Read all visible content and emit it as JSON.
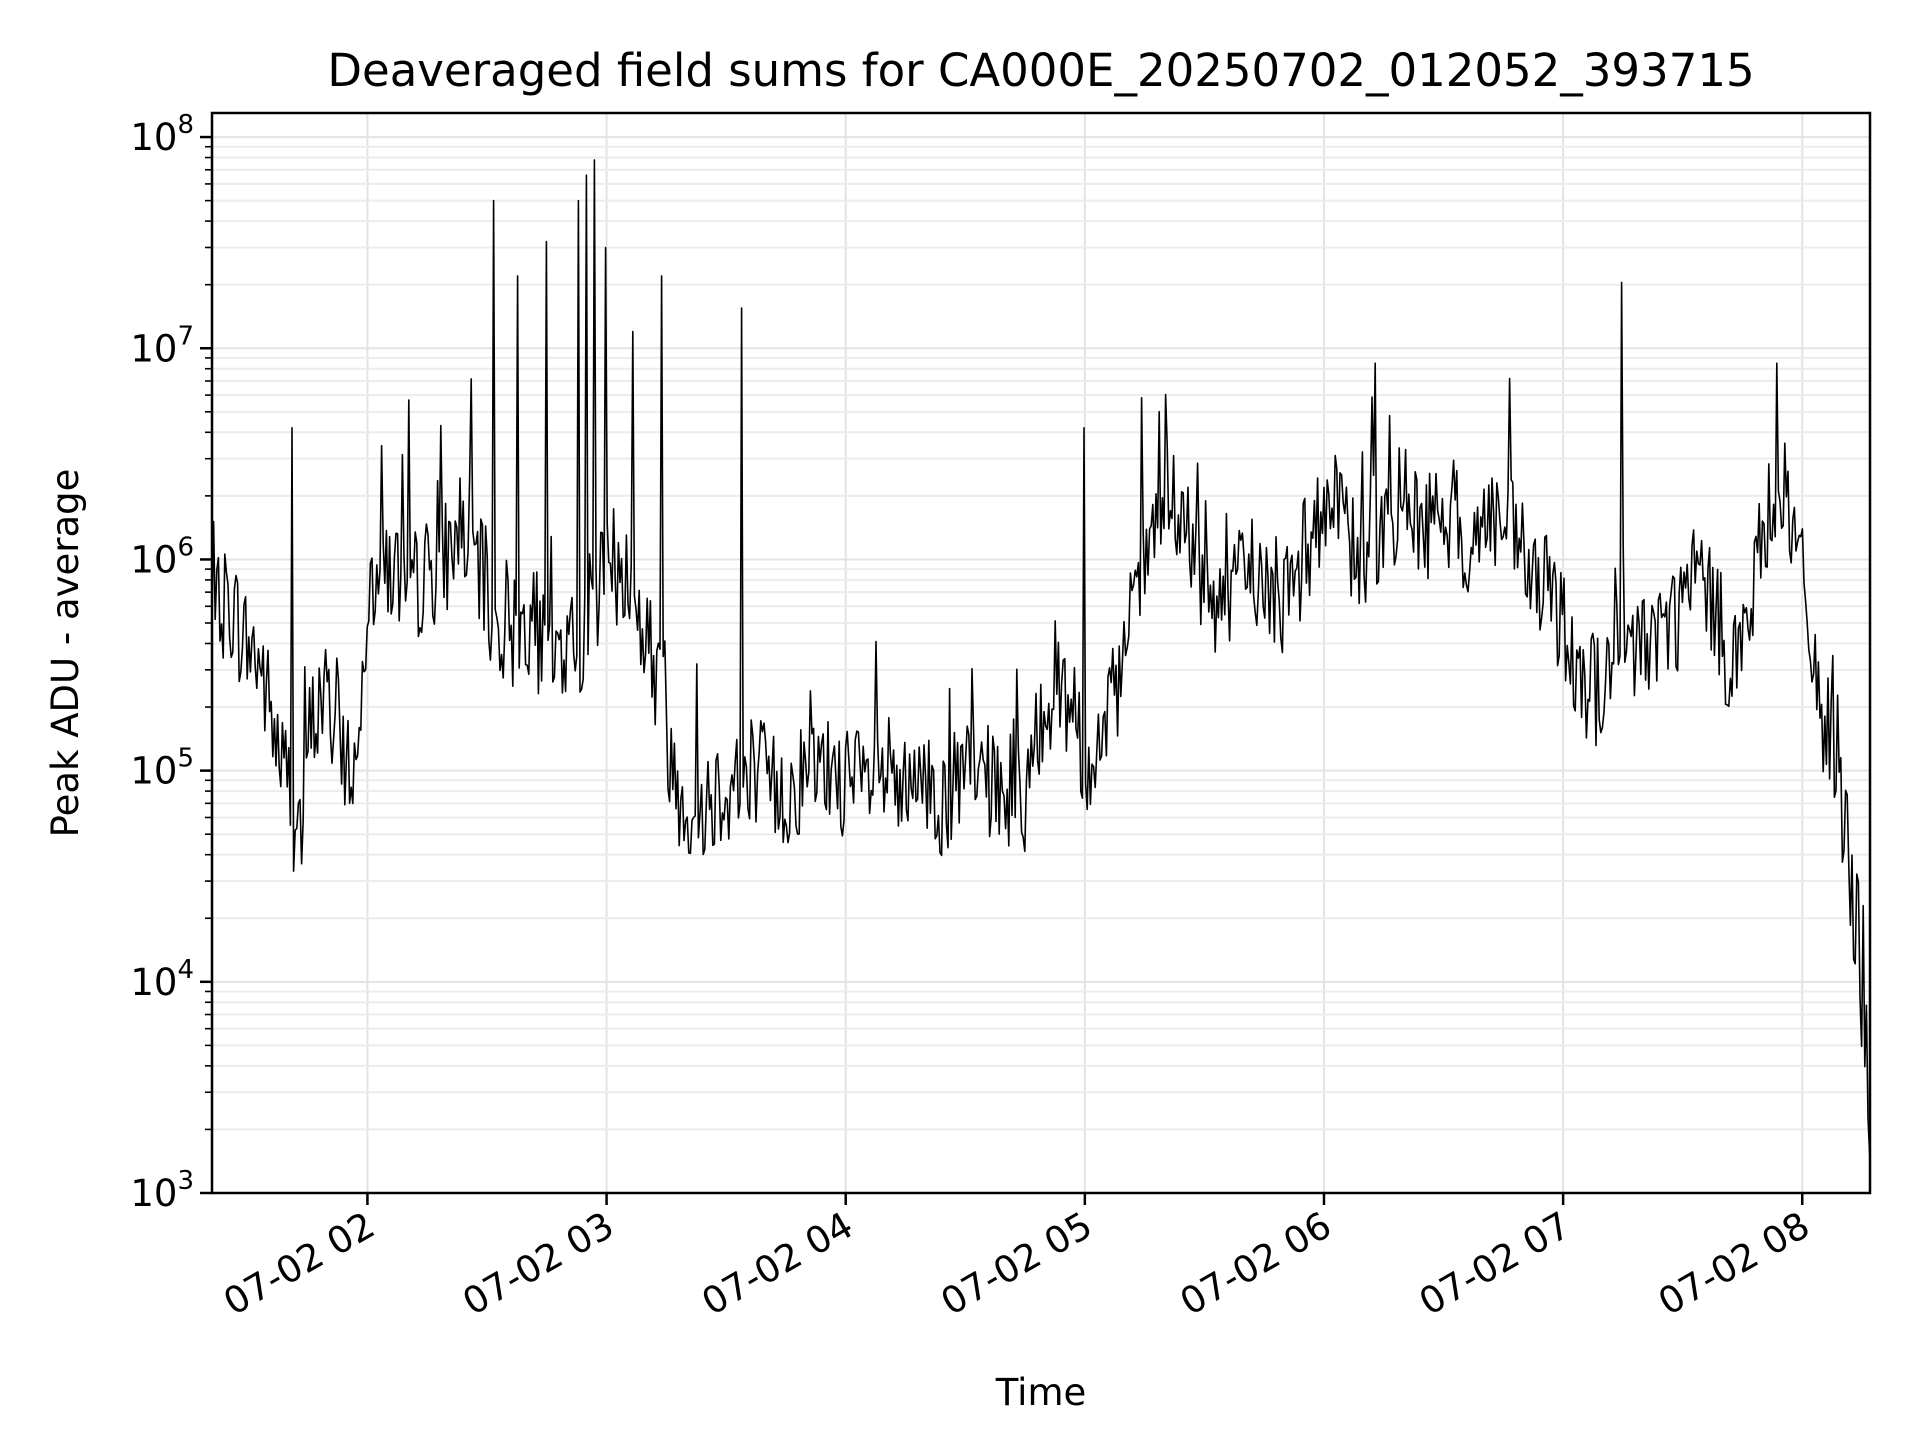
{
  "chart_data": {
    "type": "line",
    "title": "Deaveraged field sums for CA000E_20250702_012052_393715",
    "xlabel": "Time",
    "ylabel": "Peak ADU - average",
    "yscale": "log",
    "ylim": [
      1000,
      130000000
    ],
    "xlim": [
      "2025-07-02 01:21",
      "2025-07-02 08:17"
    ],
    "grid": true,
    "grid_minor_y": true,
    "line_color": "#000000",
    "x_ticks": [
      {
        "value": "2025-07-02 02:00",
        "label": "07-02 02"
      },
      {
        "value": "2025-07-02 03:00",
        "label": "07-02 03"
      },
      {
        "value": "2025-07-02 04:00",
        "label": "07-02 04"
      },
      {
        "value": "2025-07-02 05:00",
        "label": "07-02 05"
      },
      {
        "value": "2025-07-02 06:00",
        "label": "07-02 06"
      },
      {
        "value": "2025-07-02 07:00",
        "label": "07-02 07"
      },
      {
        "value": "2025-07-02 08:00",
        "label": "07-02 08"
      }
    ],
    "y_ticks": [
      {
        "value": 1000,
        "base": "10",
        "exp": "3"
      },
      {
        "value": 10000,
        "base": "10",
        "exp": "4"
      },
      {
        "value": 100000,
        "base": "10",
        "exp": "5"
      },
      {
        "value": 1000000,
        "base": "10",
        "exp": "6"
      },
      {
        "value": 10000000,
        "base": "10",
        "exp": "7"
      },
      {
        "value": 100000000,
        "base": "10",
        "exp": "8"
      }
    ],
    "series": [
      {
        "x": [
          "2025-07-02 01:21",
          "2025-07-02 01:25",
          "2025-07-02 01:29",
          "2025-07-02 01:33",
          "2025-07-02 01:37",
          "2025-07-02 01:41",
          "2025-07-02 01:43",
          "2025-07-02 01:45",
          "2025-07-02 01:49",
          "2025-07-02 01:53",
          "2025-07-02 01:57",
          "2025-07-02 02:00",
          "2025-07-02 02:03",
          "2025-07-02 02:07",
          "2025-07-02 02:12",
          "2025-07-02 02:17",
          "2025-07-02 02:21",
          "2025-07-02 02:25",
          "2025-07-02 02:29",
          "2025-07-02 02:33",
          "2025-07-02 02:37",
          "2025-07-02 02:41",
          "2025-07-02 02:45",
          "2025-07-02 02:49",
          "2025-07-02 02:53",
          "2025-07-02 02:57",
          "2025-07-02 03:01",
          "2025-07-02 03:05",
          "2025-07-02 03:09",
          "2025-07-02 03:13",
          "2025-07-02 03:17",
          "2025-07-02 03:21",
          "2025-07-02 03:25",
          "2025-07-02 03:29",
          "2025-07-02 03:33",
          "2025-07-02 03:37",
          "2025-07-02 03:41",
          "2025-07-02 03:45",
          "2025-07-02 03:49",
          "2025-07-02 03:53",
          "2025-07-02 03:57",
          "2025-07-02 04:01",
          "2025-07-02 04:05",
          "2025-07-02 04:09",
          "2025-07-02 04:13",
          "2025-07-02 04:17",
          "2025-07-02 04:21",
          "2025-07-02 04:25",
          "2025-07-02 04:29",
          "2025-07-02 04:33",
          "2025-07-02 04:37",
          "2025-07-02 04:41",
          "2025-07-02 04:45",
          "2025-07-02 04:49",
          "2025-07-02 04:53",
          "2025-07-02 04:57",
          "2025-07-02 05:01",
          "2025-07-02 05:05",
          "2025-07-02 05:09",
          "2025-07-02 05:13",
          "2025-07-02 05:17",
          "2025-07-02 05:21",
          "2025-07-02 05:25",
          "2025-07-02 05:29",
          "2025-07-02 05:33",
          "2025-07-02 05:37",
          "2025-07-02 05:41",
          "2025-07-02 05:45",
          "2025-07-02 05:49",
          "2025-07-02 05:53",
          "2025-07-02 05:57",
          "2025-07-02 06:01",
          "2025-07-02 06:05",
          "2025-07-02 06:09",
          "2025-07-02 06:13",
          "2025-07-02 06:17",
          "2025-07-02 06:21",
          "2025-07-02 06:25",
          "2025-07-02 06:29",
          "2025-07-02 06:33",
          "2025-07-02 06:37",
          "2025-07-02 06:41",
          "2025-07-02 06:45",
          "2025-07-02 06:49",
          "2025-07-02 06:53",
          "2025-07-02 06:57",
          "2025-07-02 07:01",
          "2025-07-02 07:05",
          "2025-07-02 07:09",
          "2025-07-02 07:13",
          "2025-07-02 07:17",
          "2025-07-02 07:21",
          "2025-07-02 07:25",
          "2025-07-02 07:29",
          "2025-07-02 07:33",
          "2025-07-02 07:37",
          "2025-07-02 07:41",
          "2025-07-02 07:45",
          "2025-07-02 07:49",
          "2025-07-02 07:53",
          "2025-07-02 07:57",
          "2025-07-02 08:01",
          "2025-07-02 08:05",
          "2025-07-02 08:09",
          "2025-07-02 08:13",
          "2025-07-02 08:17"
        ],
        "y": [
          500000,
          700000,
          450000,
          350000,
          150000,
          80000,
          40000,
          150000,
          250000,
          150000,
          100000,
          700000,
          1200000,
          900000,
          800000,
          1000000,
          1200000,
          1500000,
          800000,
          500000,
          450000,
          600000,
          350000,
          400000,
          450000,
          700000,
          1000000,
          900000,
          500000,
          300000,
          100000,
          70000,
          80000,
          90000,
          100000,
          120000,
          90000,
          80000,
          100000,
          100000,
          110000,
          90000,
          90000,
          100000,
          80000,
          80000,
          90000,
          70000,
          100000,
          100000,
          90000,
          80000,
          80000,
          200000,
          300000,
          200000,
          100000,
          150000,
          300000,
          700000,
          1500000,
          2000000,
          1500000,
          800000,
          700000,
          700000,
          1000000,
          800000,
          700000,
          800000,
          1500000,
          2000000,
          1500000,
          1000000,
          1500000,
          1800000,
          2000000,
          1500000,
          1800000,
          1500000,
          1200000,
          1800000,
          1500000,
          1200000,
          800000,
          700000,
          500000,
          300000,
          250000,
          350000,
          400000,
          450000,
          500000,
          600000,
          900000,
          700000,
          400000,
          400000,
          1000000,
          2500000,
          1800000,
          600000,
          200000,
          100000,
          30000,
          3000
        ],
        "spikes": [
          {
            "x": "2025-07-02 01:41",
            "y": 4200000
          },
          {
            "x": "2025-07-02 02:32",
            "y": 50000000
          },
          {
            "x": "2025-07-02 02:38",
            "y": 22000000
          },
          {
            "x": "2025-07-02 02:45",
            "y": 32000000
          },
          {
            "x": "2025-07-02 02:53",
            "y": 50000000
          },
          {
            "x": "2025-07-02 02:55",
            "y": 66000000
          },
          {
            "x": "2025-07-02 02:57",
            "y": 78000000
          },
          {
            "x": "2025-07-02 03:00",
            "y": 30000000
          },
          {
            "x": "2025-07-02 03:07",
            "y": 12000000
          },
          {
            "x": "2025-07-02 03:14",
            "y": 22000000
          },
          {
            "x": "2025-07-02 03:34",
            "y": 15500000
          },
          {
            "x": "2025-07-02 05:00",
            "y": 4200000
          },
          {
            "x": "2025-07-02 06:13",
            "y": 8500000
          },
          {
            "x": "2025-07-02 06:47",
            "y": 7200000
          },
          {
            "x": "2025-07-02 07:15",
            "y": 20500000
          },
          {
            "x": "2025-07-02 07:54",
            "y": 8500000
          }
        ]
      }
    ]
  }
}
